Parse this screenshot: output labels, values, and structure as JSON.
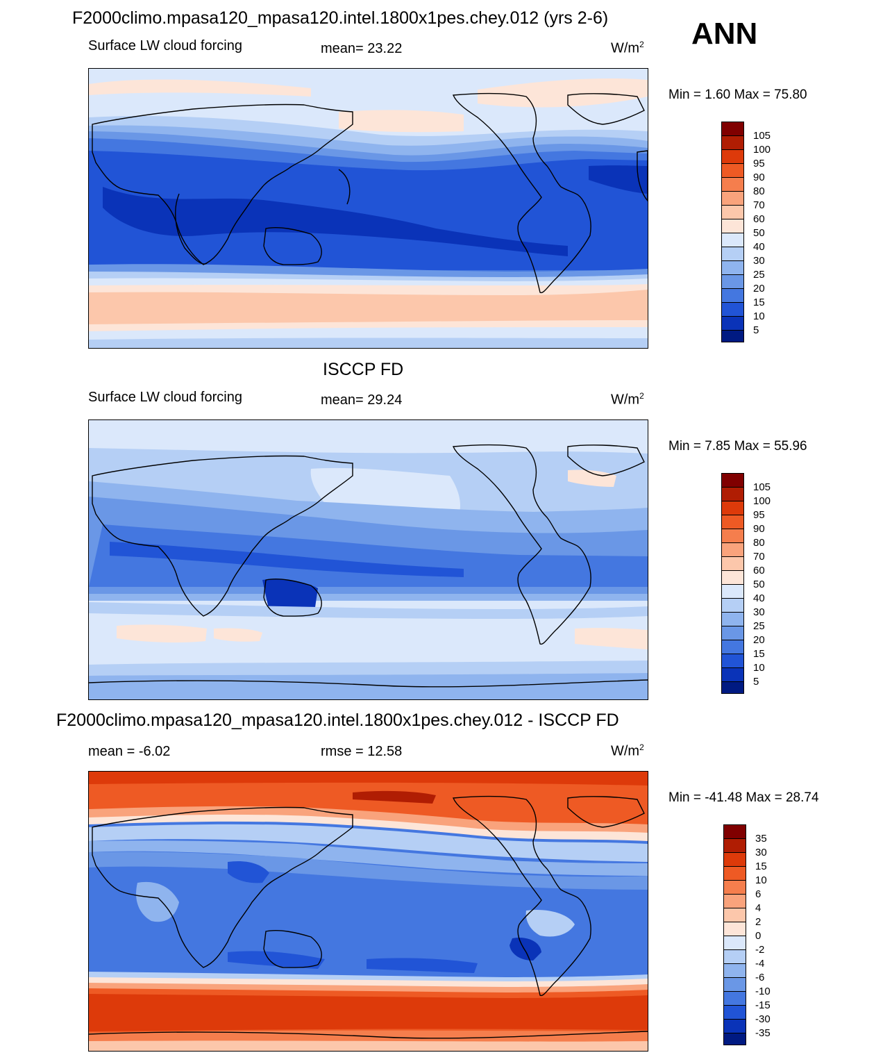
{
  "header": {
    "main_title": "F2000climo.mpasa120_mpasa120.intel.1800x1pes.chey.012 (yrs 2-6)",
    "season": "ANN"
  },
  "panels": [
    {
      "id": "model",
      "title": "",
      "left_label": "Surface LW cloud forcing",
      "center_label": "mean=  23.22",
      "units": "W/m",
      "units_sup": "2",
      "min_max": "Min =   1.60 Max =  75.80",
      "colorbar_labels": [
        "105",
        "100",
        "95",
        "90",
        "80",
        "70",
        "60",
        "50",
        "40",
        "30",
        "25",
        "20",
        "15",
        "10",
        "5"
      ]
    },
    {
      "id": "obs",
      "title": "ISCCP FD",
      "left_label": "Surface LW cloud forcing",
      "center_label": "mean=  29.24",
      "units": "W/m",
      "units_sup": "2",
      "min_max": "Min =   7.85 Max =  55.96",
      "colorbar_labels": [
        "105",
        "100",
        "95",
        "90",
        "80",
        "70",
        "60",
        "50",
        "40",
        "30",
        "25",
        "20",
        "15",
        "10",
        "5"
      ]
    },
    {
      "id": "diff",
      "title": "F2000climo.mpasa120_mpasa120.intel.1800x1pes.chey.012 - ISCCP FD",
      "left_label": "mean =  -6.02",
      "center_label": "rmse =  12.58",
      "units": "W/m",
      "units_sup": "2",
      "min_max": "Min = -41.48 Max =  28.74",
      "colorbar_labels": [
        "35",
        "30",
        "15",
        "10",
        "6",
        "4",
        "2",
        "0",
        "-2",
        "-4",
        "-6",
        "-10",
        "-15",
        "-30",
        "-35"
      ]
    }
  ],
  "colors": {
    "colorbar": [
      "#800000",
      "#b01d03",
      "#dd3a0a",
      "#ee5a24",
      "#f57e4d",
      "#f9a37c",
      "#fcc7ab",
      "#fde5d8",
      "#dbe8fb",
      "#b5cff5",
      "#8fb4ee",
      "#6a97e6",
      "#4477e0",
      "#2154d6",
      "#0a33b8",
      "#001a82"
    ]
  },
  "chart_data": [
    {
      "type": "heatmap",
      "title": "F2000climo.mpasa120_mpasa120.intel.1800x1pes.chey.012 (yrs 2-6)",
      "subtitle": "Surface LW cloud forcing",
      "units": "W/m^2",
      "mean": 23.22,
      "min": 1.6,
      "max": 75.8,
      "levels": [
        5,
        10,
        15,
        20,
        25,
        30,
        40,
        50,
        60,
        70,
        80,
        90,
        95,
        100,
        105
      ],
      "zonal_profile_lat_to_value": [
        [
          90,
          35
        ],
        [
          75,
          50
        ],
        [
          65,
          45
        ],
        [
          55,
          30
        ],
        [
          45,
          18
        ],
        [
          35,
          10
        ],
        [
          20,
          8
        ],
        [
          0,
          10
        ],
        [
          -20,
          10
        ],
        [
          -35,
          15
        ],
        [
          -45,
          30
        ],
        [
          -52,
          50
        ],
        [
          -60,
          55
        ],
        [
          -70,
          35
        ],
        [
          -90,
          25
        ]
      ]
    },
    {
      "type": "heatmap",
      "title": "ISCCP FD",
      "subtitle": "Surface LW cloud forcing",
      "units": "W/m^2",
      "mean": 29.24,
      "min": 7.85,
      "max": 55.96,
      "levels": [
        5,
        10,
        15,
        20,
        25,
        30,
        40,
        50,
        60,
        70,
        80,
        90,
        95,
        100,
        105
      ],
      "zonal_profile_lat_to_value": [
        [
          90,
          40
        ],
        [
          75,
          35
        ],
        [
          60,
          30
        ],
        [
          45,
          25
        ],
        [
          30,
          28
        ],
        [
          15,
          22
        ],
        [
          0,
          20
        ],
        [
          -15,
          22
        ],
        [
          -30,
          28
        ],
        [
          -45,
          38
        ],
        [
          -55,
          42
        ],
        [
          -65,
          35
        ],
        [
          -90,
          30
        ]
      ]
    },
    {
      "type": "heatmap",
      "title": "F2000climo.mpasa120_mpasa120.intel.1800x1pes.chey.012 - ISCCP FD",
      "units": "W/m^2",
      "mean": -6.02,
      "rmse": 12.58,
      "min": -41.48,
      "max": 28.74,
      "levels": [
        -35,
        -30,
        -15,
        -10,
        -6,
        -4,
        -2,
        0,
        2,
        4,
        6,
        10,
        15,
        30,
        35
      ],
      "zonal_profile_lat_to_value": [
        [
          90,
          15
        ],
        [
          75,
          14
        ],
        [
          65,
          8
        ],
        [
          55,
          -3
        ],
        [
          45,
          -10
        ],
        [
          30,
          -12
        ],
        [
          15,
          -8
        ],
        [
          0,
          -10
        ],
        [
          -15,
          -9
        ],
        [
          -30,
          -11
        ],
        [
          -40,
          -8
        ],
        [
          -45,
          0
        ],
        [
          -52,
          14
        ],
        [
          -62,
          15
        ],
        [
          -75,
          10
        ],
        [
          -90,
          4
        ]
      ]
    }
  ]
}
